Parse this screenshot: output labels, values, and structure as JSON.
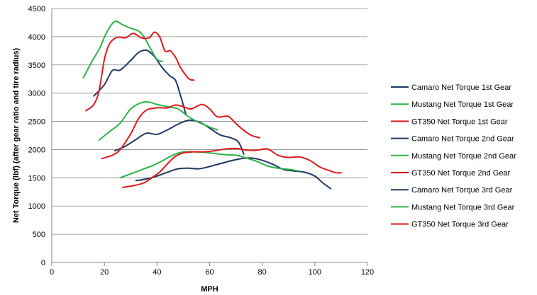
{
  "chart_data": {
    "type": "line",
    "title": "",
    "xlabel": "MPH",
    "ylabel": "Net Torque (lbf) (after gear ratio and tire radius)",
    "xlim": [
      0,
      120
    ],
    "ylim": [
      0,
      4500
    ],
    "xticks": [
      0,
      20,
      40,
      60,
      80,
      100,
      120
    ],
    "yticks": [
      0,
      500,
      1000,
      1500,
      2000,
      2500,
      3000,
      3500,
      4000,
      4500
    ],
    "grid": "horizontal",
    "legend_position": "right",
    "series": [
      {
        "name": "Camaro Net Torque 1st Gear",
        "color": "#1f3864",
        "points": [
          [
            16,
            2950
          ],
          [
            20,
            3150
          ],
          [
            23,
            3400
          ],
          [
            26,
            3410
          ],
          [
            30,
            3580
          ],
          [
            33,
            3720
          ],
          [
            36,
            3760
          ],
          [
            39,
            3650
          ],
          [
            42,
            3450
          ],
          [
            45,
            3300
          ],
          [
            47,
            3230
          ],
          [
            49,
            2950
          ],
          [
            51,
            2620
          ]
        ]
      },
      {
        "name": "Mustang Net Torque 1st Gear",
        "color": "#2cb34a",
        "points": [
          [
            12,
            3270
          ],
          [
            15,
            3540
          ],
          [
            18,
            3780
          ],
          [
            21,
            4090
          ],
          [
            24,
            4270
          ],
          [
            27,
            4210
          ],
          [
            30,
            4150
          ],
          [
            33,
            4100
          ],
          [
            35,
            4000
          ],
          [
            38,
            3750
          ],
          [
            40,
            3600
          ],
          [
            42,
            3560
          ]
        ]
      },
      {
        "name": "GT350 Net Torque 1st Gear",
        "color": "#e0181a",
        "points": [
          [
            13,
            2690
          ],
          [
            16,
            2800
          ],
          [
            18,
            3050
          ],
          [
            20,
            3600
          ],
          [
            22,
            3880
          ],
          [
            25,
            3990
          ],
          [
            28,
            3980
          ],
          [
            31,
            4060
          ],
          [
            34,
            3980
          ],
          [
            37,
            3980
          ],
          [
            39,
            4080
          ],
          [
            41,
            4000
          ],
          [
            43,
            3750
          ],
          [
            45,
            3750
          ],
          [
            47,
            3640
          ],
          [
            49,
            3450
          ],
          [
            52,
            3260
          ],
          [
            54,
            3230
          ]
        ]
      },
      {
        "name": "Camaro Net Torque 2nd Gear",
        "color": "#1f3864",
        "points": [
          [
            24,
            1980
          ],
          [
            28,
            2060
          ],
          [
            32,
            2180
          ],
          [
            36,
            2290
          ],
          [
            40,
            2270
          ],
          [
            44,
            2350
          ],
          [
            48,
            2450
          ],
          [
            52,
            2520
          ],
          [
            56,
            2490
          ],
          [
            60,
            2380
          ],
          [
            64,
            2260
          ],
          [
            68,
            2210
          ],
          [
            71,
            2130
          ],
          [
            73,
            1920
          ]
        ]
      },
      {
        "name": "Mustang Net Torque 2nd Gear",
        "color": "#2cb34a",
        "points": [
          [
            18,
            2170
          ],
          [
            22,
            2320
          ],
          [
            26,
            2470
          ],
          [
            30,
            2720
          ],
          [
            34,
            2830
          ],
          [
            37,
            2840
          ],
          [
            40,
            2800
          ],
          [
            44,
            2760
          ],
          [
            48,
            2720
          ],
          [
            52,
            2580
          ],
          [
            56,
            2480
          ],
          [
            60,
            2400
          ],
          [
            63,
            2350
          ]
        ]
      },
      {
        "name": "GT350 Net Torque 2nd Gear",
        "color": "#e0181a",
        "points": [
          [
            19,
            1840
          ],
          [
            23,
            1900
          ],
          [
            26,
            2000
          ],
          [
            30,
            2280
          ],
          [
            33,
            2550
          ],
          [
            36,
            2700
          ],
          [
            40,
            2740
          ],
          [
            44,
            2740
          ],
          [
            47,
            2790
          ],
          [
            50,
            2760
          ],
          [
            53,
            2720
          ],
          [
            57,
            2800
          ],
          [
            60,
            2720
          ],
          [
            63,
            2580
          ],
          [
            67,
            2590
          ],
          [
            70,
            2460
          ],
          [
            73,
            2340
          ],
          [
            76,
            2250
          ],
          [
            79,
            2210
          ]
        ]
      },
      {
        "name": "Camaro Net Torque 3rd Gear",
        "color": "#1f3864",
        "points": [
          [
            32,
            1450
          ],
          [
            36,
            1480
          ],
          [
            40,
            1530
          ],
          [
            44,
            1600
          ],
          [
            48,
            1660
          ],
          [
            52,
            1670
          ],
          [
            56,
            1660
          ],
          [
            60,
            1700
          ],
          [
            64,
            1750
          ],
          [
            68,
            1800
          ],
          [
            72,
            1840
          ],
          [
            76,
            1850
          ],
          [
            80,
            1810
          ],
          [
            84,
            1740
          ],
          [
            88,
            1650
          ],
          [
            92,
            1620
          ],
          [
            96,
            1600
          ],
          [
            100,
            1530
          ],
          [
            103,
            1410
          ],
          [
            106,
            1310
          ]
        ]
      },
      {
        "name": "Mustang Net Torque 3rd Gear",
        "color": "#2cb34a",
        "points": [
          [
            26,
            1500
          ],
          [
            30,
            1570
          ],
          [
            34,
            1640
          ],
          [
            38,
            1710
          ],
          [
            42,
            1800
          ],
          [
            46,
            1900
          ],
          [
            50,
            1960
          ],
          [
            54,
            1960
          ],
          [
            58,
            1950
          ],
          [
            62,
            1930
          ],
          [
            66,
            1910
          ],
          [
            70,
            1900
          ],
          [
            74,
            1850
          ],
          [
            78,
            1790
          ],
          [
            82,
            1710
          ],
          [
            86,
            1670
          ],
          [
            90,
            1650
          ],
          [
            94,
            1620
          ]
        ]
      },
      {
        "name": "GT350 Net Torque 3rd Gear",
        "color": "#e0181a",
        "points": [
          [
            27,
            1330
          ],
          [
            31,
            1360
          ],
          [
            35,
            1410
          ],
          [
            38,
            1500
          ],
          [
            41,
            1600
          ],
          [
            44,
            1750
          ],
          [
            47,
            1880
          ],
          [
            50,
            1940
          ],
          [
            54,
            1960
          ],
          [
            58,
            1960
          ],
          [
            62,
            1980
          ],
          [
            66,
            2010
          ],
          [
            70,
            2020
          ],
          [
            74,
            1990
          ],
          [
            78,
            1990
          ],
          [
            82,
            2010
          ],
          [
            86,
            1900
          ],
          [
            90,
            1860
          ],
          [
            94,
            1870
          ],
          [
            98,
            1810
          ],
          [
            102,
            1690
          ],
          [
            106,
            1620
          ],
          [
            108,
            1590
          ],
          [
            110,
            1590
          ]
        ]
      }
    ]
  }
}
